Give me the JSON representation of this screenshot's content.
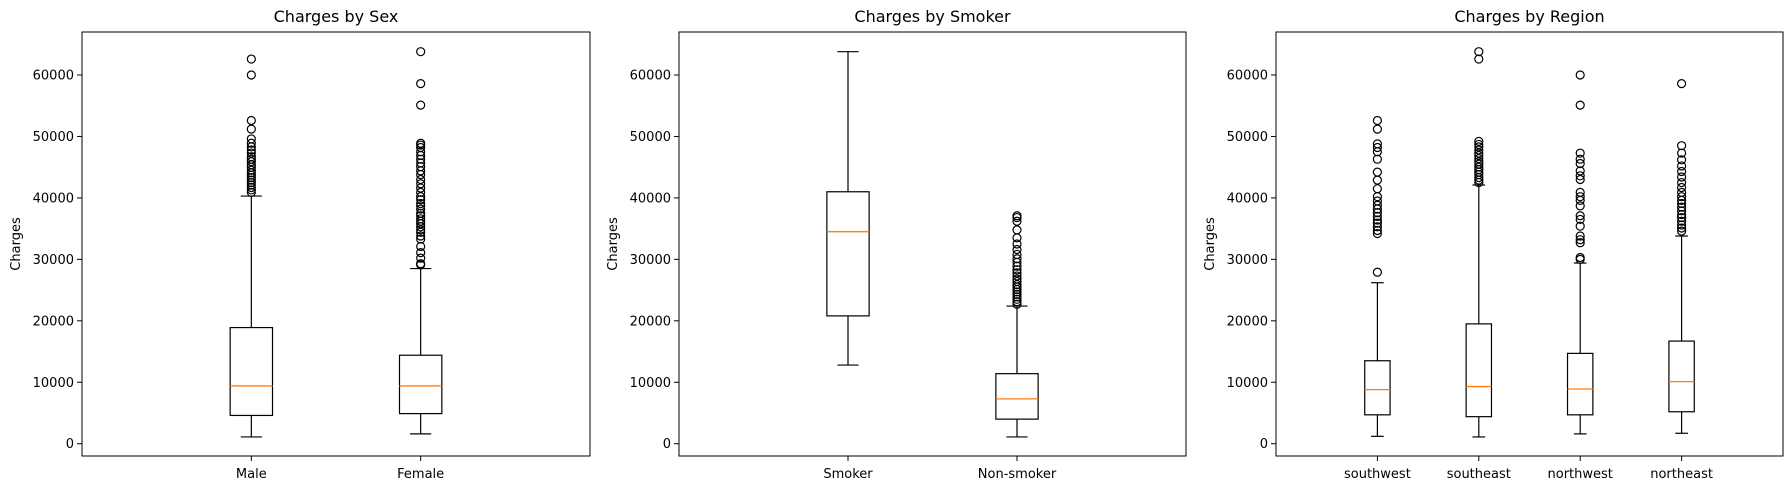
{
  "colors": {
    "median": "#ff7f0e",
    "box": "#000000",
    "background": "#ffffff"
  },
  "chart_data": [
    {
      "type": "boxplot",
      "title": "Charges by Sex",
      "xlabel": "",
      "ylabel": "Charges",
      "ylim": [
        -2000,
        67000
      ],
      "yticks": [
        0,
        10000,
        20000,
        30000,
        40000,
        50000,
        60000
      ],
      "ytick_labels": [
        "0",
        "10000",
        "20000",
        "30000",
        "40000",
        "50000",
        "60000"
      ],
      "categories": [
        "Male",
        "Female"
      ],
      "boxes": [
        {
          "whislo": 1100,
          "q1": 4600,
          "med": 9400,
          "q3": 18900,
          "whishi": 40300,
          "fliers": [
            40900,
            41300,
            41700,
            42100,
            42500,
            42900,
            43300,
            43700,
            44100,
            44500,
            45000,
            45400,
            45900,
            46300,
            46700,
            47300,
            47800,
            48300,
            48900,
            49600,
            51200,
            52600,
            60000,
            62600
          ]
        },
        {
          "whislo": 1600,
          "q1": 4900,
          "med": 9400,
          "q3": 14400,
          "whishi": 28500,
          "fliers": [
            29100,
            29300,
            30200,
            31100,
            32100,
            33300,
            33800,
            34400,
            34800,
            35300,
            35800,
            36200,
            36600,
            37100,
            37500,
            38200,
            38700,
            39100,
            39700,
            40200,
            40900,
            41600,
            42300,
            43000,
            43800,
            44400,
            45100,
            45700,
            46300,
            46900,
            47500,
            48200,
            48600,
            48900,
            55100,
            58600,
            63800
          ]
        }
      ]
    },
    {
      "type": "boxplot",
      "title": "Charges by Smoker",
      "xlabel": "",
      "ylabel": "Charges",
      "ylim": [
        -2000,
        67000
      ],
      "yticks": [
        0,
        10000,
        20000,
        30000,
        40000,
        50000,
        60000
      ],
      "ytick_labels": [
        "0",
        "10000",
        "20000",
        "30000",
        "40000",
        "50000",
        "60000"
      ],
      "categories": [
        "Smoker",
        "Non-smoker"
      ],
      "boxes": [
        {
          "whislo": 12800,
          "q1": 20800,
          "med": 34500,
          "q3": 41000,
          "whishi": 63800,
          "fliers": []
        },
        {
          "whislo": 1100,
          "q1": 4000,
          "med": 7300,
          "q3": 11400,
          "whishi": 22400,
          "fliers": [
            22700,
            23100,
            23500,
            23900,
            24300,
            24700,
            25100,
            25500,
            25900,
            26400,
            26800,
            27300,
            27800,
            28300,
            28900,
            29500,
            30100,
            30800,
            31600,
            32500,
            33500,
            34800,
            36200,
            36800,
            37100
          ]
        }
      ]
    },
    {
      "type": "boxplot",
      "title": "Charges by Region",
      "xlabel": "",
      "ylabel": "Charges",
      "ylim": [
        -2000,
        67000
      ],
      "yticks": [
        0,
        10000,
        20000,
        30000,
        40000,
        50000,
        60000
      ],
      "ytick_labels": [
        "0",
        "10000",
        "20000",
        "30000",
        "40000",
        "50000",
        "60000"
      ],
      "categories": [
        "southwest",
        "southeast",
        "northwest",
        "northeast"
      ],
      "boxes": [
        {
          "whislo": 1200,
          "q1": 4700,
          "med": 8800,
          "q3": 13500,
          "whishi": 26200,
          "fliers": [
            27900,
            34200,
            34700,
            35300,
            35900,
            36400,
            37000,
            37600,
            38200,
            38800,
            39500,
            40200,
            41500,
            42900,
            44200,
            46300,
            47500,
            48200,
            48800,
            51200,
            52600
          ]
        },
        {
          "whislo": 1100,
          "q1": 4400,
          "med": 9300,
          "q3": 19500,
          "whishi": 42100,
          "fliers": [
            42500,
            42900,
            43300,
            43800,
            44200,
            44600,
            45000,
            45500,
            45900,
            46400,
            46900,
            47300,
            47800,
            48300,
            48700,
            49200,
            62600,
            63800
          ]
        },
        {
          "whislo": 1600,
          "q1": 4700,
          "med": 8900,
          "q3": 14700,
          "whishi": 29400,
          "fliers": [
            30000,
            30300,
            32700,
            33200,
            33800,
            35400,
            36500,
            37100,
            38700,
            39600,
            40200,
            40900,
            43000,
            43600,
            44400,
            45600,
            46300,
            47300,
            55100,
            60000
          ]
        },
        {
          "whislo": 1700,
          "q1": 5200,
          "med": 10100,
          "q3": 16700,
          "whishi": 33800,
          "fliers": [
            34600,
            35100,
            35600,
            36200,
            36800,
            37300,
            37900,
            38500,
            39100,
            39600,
            40200,
            40900,
            41700,
            42500,
            43400,
            44300,
            45200,
            46200,
            47300,
            48500,
            58600
          ]
        }
      ]
    }
  ]
}
